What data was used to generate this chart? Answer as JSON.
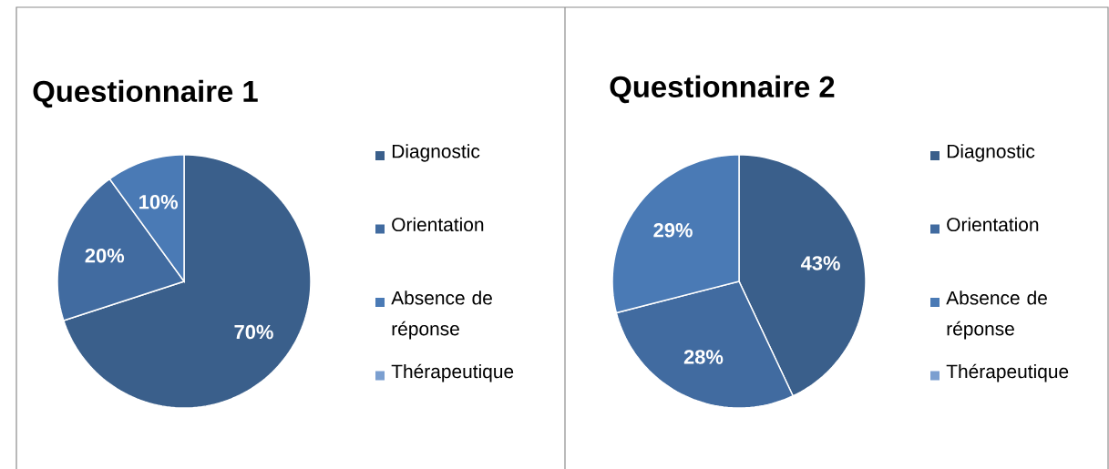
{
  "chart_data": [
    {
      "type": "pie",
      "title": "Questionnaire 1",
      "categories": [
        "Diagnostic",
        "Orientation",
        "Absence de réponse",
        "Thérapeutique"
      ],
      "values": [
        70,
        20,
        10,
        0
      ],
      "colors": [
        "#3a5f8b",
        "#416ba0",
        "#4a7ab5",
        "#7b9fd0"
      ],
      "value_labels": [
        "70%",
        "20%",
        "10%",
        null
      ],
      "legend": "right"
    },
    {
      "type": "pie",
      "title": "Questionnaire 2",
      "categories": [
        "Diagnostic",
        "Orientation",
        "Absence de réponse",
        "Thérapeutique"
      ],
      "values": [
        43,
        28,
        29,
        0
      ],
      "colors": [
        "#3a5f8b",
        "#416ba0",
        "#4a7ab5",
        "#7b9fd0"
      ],
      "value_labels": [
        "43%",
        "28%",
        "29%",
        null
      ],
      "legend": "right"
    }
  ]
}
